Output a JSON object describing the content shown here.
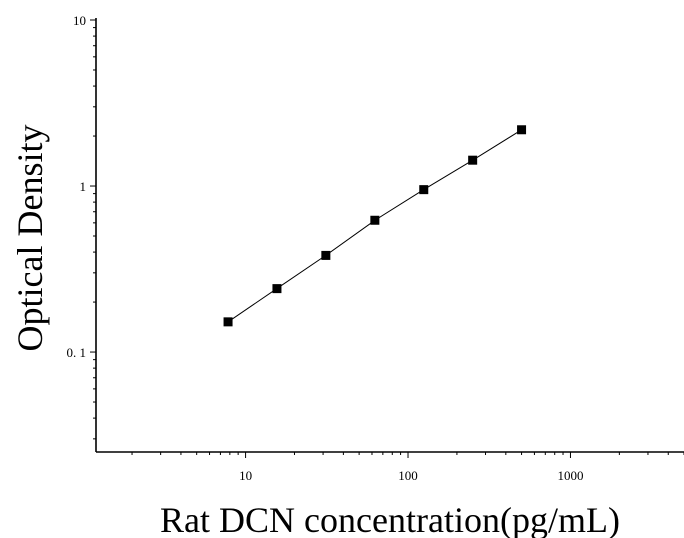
{
  "chart_data": {
    "type": "scatter",
    "title": "",
    "xlabel": "Rat DCN concentration(pg/mL)",
    "ylabel": "Optical Density",
    "x_scale": "log",
    "y_scale": "log",
    "xlim": [
      1.2,
      5000
    ],
    "ylim": [
      0.025,
      10
    ],
    "x_ticks": [
      10,
      100,
      1000
    ],
    "x_tick_labels": [
      "10",
      "100",
      "1000"
    ],
    "y_ticks": [
      0.1,
      1,
      10
    ],
    "y_tick_labels": [
      "0. 1",
      "1",
      "10"
    ],
    "grid": false,
    "legend": "none",
    "series": [
      {
        "x": [
          7.8,
          15.6,
          31.2,
          62.5,
          125,
          250,
          500
        ],
        "y": [
          0.152,
          0.241,
          0.382,
          0.622,
          0.951,
          1.431,
          2.182
        ],
        "marker": "square",
        "fit_line": true
      }
    ],
    "colors": {
      "marker": "#000000",
      "line": "#000000",
      "axis": "#000000"
    }
  }
}
